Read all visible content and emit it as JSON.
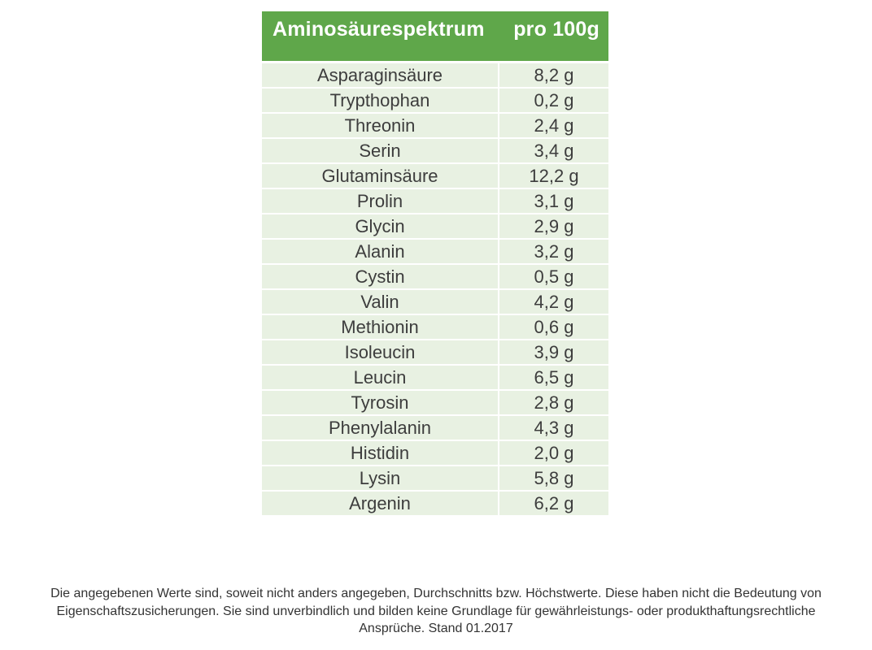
{
  "table": {
    "header": {
      "title": "Aminosäurespektrum",
      "unit": "pro 100g"
    },
    "rows": [
      {
        "name": "Asparaginsäure",
        "value": "8,2 g"
      },
      {
        "name": "Trypthophan",
        "value": "0,2 g"
      },
      {
        "name": "Threonin",
        "value": "2,4 g"
      },
      {
        "name": "Serin",
        "value": "3,4 g"
      },
      {
        "name": "Glutaminsäure",
        "value": "12,2 g"
      },
      {
        "name": "Prolin",
        "value": "3,1 g"
      },
      {
        "name": "Glycin",
        "value": "2,9 g"
      },
      {
        "name": "Alanin",
        "value": "3,2 g"
      },
      {
        "name": "Cystin",
        "value": "0,5 g"
      },
      {
        "name": "Valin",
        "value": "4,2 g"
      },
      {
        "name": "Methionin",
        "value": "0,6 g"
      },
      {
        "name": "Isoleucin",
        "value": "3,9 g"
      },
      {
        "name": "Leucin",
        "value": "6,5 g"
      },
      {
        "name": "Tyrosin",
        "value": "2,8 g"
      },
      {
        "name": "Phenylalanin",
        "value": "4,3 g"
      },
      {
        "name": "Histidin",
        "value": "2,0 g"
      },
      {
        "name": "Lysin",
        "value": "5,8 g"
      },
      {
        "name": "Argenin",
        "value": "6,2 g"
      }
    ]
  },
  "chart_data": {
    "type": "table",
    "title": "Aminosäurespektrum",
    "columns": [
      "Aminosäurespektrum",
      "pro 100g"
    ],
    "categories": [
      "Asparaginsäure",
      "Trypthophan",
      "Threonin",
      "Serin",
      "Glutaminsäure",
      "Prolin",
      "Glycin",
      "Alanin",
      "Cystin",
      "Valin",
      "Methionin",
      "Isoleucin",
      "Leucin",
      "Tyrosin",
      "Phenylalanin",
      "Histidin",
      "Lysin",
      "Argenin"
    ],
    "values": [
      8.2,
      0.2,
      2.4,
      3.4,
      12.2,
      3.1,
      2.9,
      3.2,
      0.5,
      4.2,
      0.6,
      3.9,
      6.5,
      2.8,
      4.3,
      2.0,
      5.8,
      6.2
    ],
    "value_unit": "g"
  },
  "footer": {
    "lines": [
      "Die angegebenen Werte sind, soweit nicht anders angegeben, Durchschnitts bzw. Höchstwerte. Diese haben nicht die Bedeutung von",
      "Eigenschaftszusicherungen. Sie sind unverbindlich und bilden keine Grundlage für gewährleistungs- oder produkthaftungsrechtliche",
      "Ansprüche. Stand 01.2017"
    ]
  },
  "colors": {
    "header_bg": "#5fa74a",
    "row_bg": "#e8f1e2",
    "text": "#3d3d3d",
    "header_text": "#ffffff",
    "footer_text": "#333333"
  }
}
